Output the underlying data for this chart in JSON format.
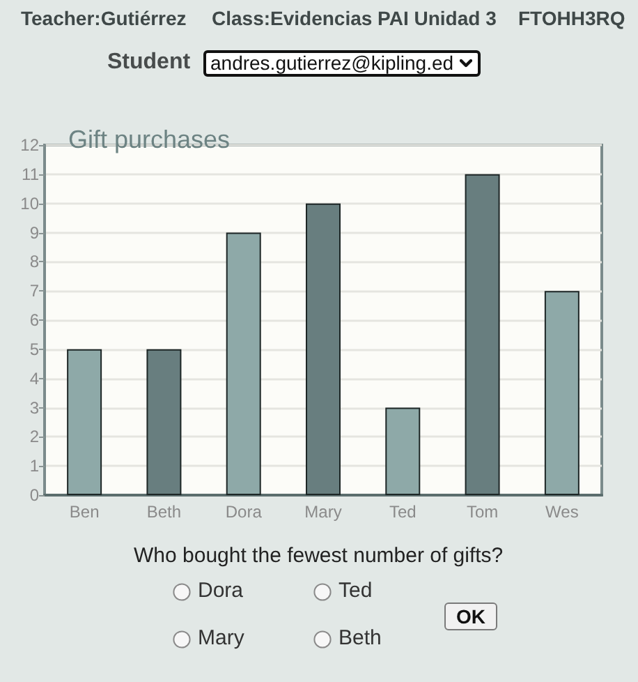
{
  "chart_data": {
    "type": "bar",
    "title": "Gift purchases",
    "categories": [
      "Ben",
      "Beth",
      "Dora",
      "Mary",
      "Ted",
      "Tom",
      "Wes"
    ],
    "values": [
      5,
      5,
      9,
      10,
      3,
      11,
      7
    ],
    "colors": [
      "#8ea9a8",
      "#687e7f",
      "#8ea9a8",
      "#687e7f",
      "#8ea9a8",
      "#687e7f",
      "#8ea9a8"
    ],
    "ylim": [
      0,
      12
    ],
    "yticks": [
      0,
      1,
      2,
      3,
      4,
      5,
      6,
      7,
      8,
      9,
      10,
      11,
      12
    ],
    "grid": "y",
    "annotations": [
      "Teacher:Gutiérrez",
      "Class:Evidencias PAI Unidad 3",
      "FTOHH3RQ",
      "Student",
      "andres.gutierrez@kipling.ed",
      "Who bought the fewest number of gifts?",
      "Dora",
      "Ted",
      "Mary",
      "Beth",
      "OK"
    ]
  }
}
